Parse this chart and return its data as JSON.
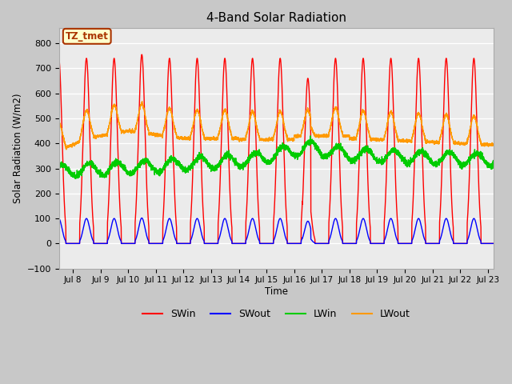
{
  "title": "4-Band Solar Radiation",
  "ylabel": "Solar Radiation (W/m2)",
  "xlabel": "Time",
  "xlim_days": [
    7.5,
    23.2
  ],
  "ylim": [
    -100,
    860
  ],
  "yticks": [
    -100,
    0,
    100,
    200,
    300,
    400,
    500,
    600,
    700,
    800
  ],
  "xtick_labels": [
    "Jul 8",
    "Jul 9",
    "Jul 10",
    "Jul 11",
    "Jul 12",
    "Jul 13",
    "Jul 14",
    "Jul 15",
    "Jul 16",
    "Jul 17",
    "Jul 18",
    "Jul 19",
    "Jul 20",
    "Jul 21",
    "Jul 22",
    "Jul 23"
  ],
  "xtick_days": [
    8,
    9,
    10,
    11,
    12,
    13,
    14,
    15,
    16,
    17,
    18,
    19,
    20,
    21,
    22,
    23
  ],
  "annotation_text": "TZ_tmet",
  "annotation_color": "#aa3300",
  "annotation_bg": "#ffffcc",
  "colors": {
    "SWin": "#ff0000",
    "SWout": "#0000ff",
    "LWin": "#00cc00",
    "LWout": "#ff9900"
  },
  "fig_bg": "#c8c8c8",
  "plot_bg": "#ebebeb",
  "grid_color": "#ffffff",
  "figsize": [
    6.4,
    4.8
  ],
  "dpi": 100
}
